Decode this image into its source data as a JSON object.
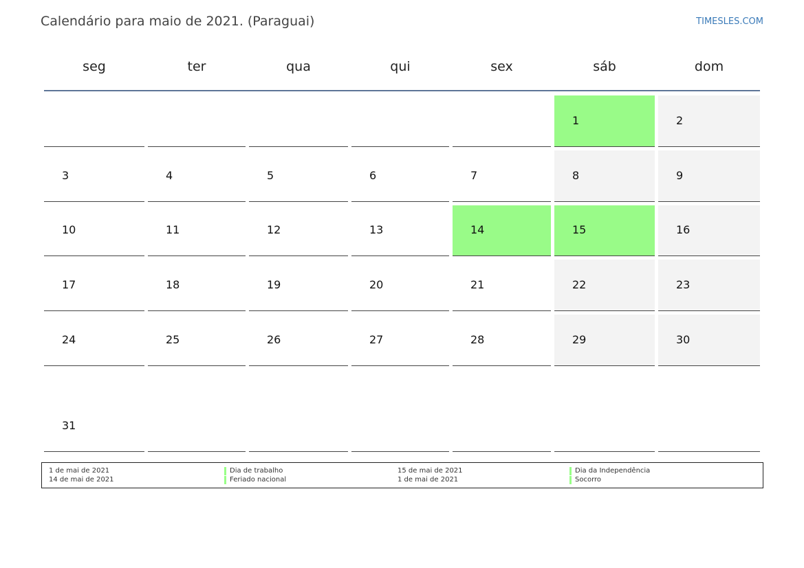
{
  "header": {
    "title": "Calendário para maio de 2021. (Paraguai)",
    "site": "TIMESLES.COM"
  },
  "weekdays": [
    "seg",
    "ter",
    "qua",
    "qui",
    "sex",
    "sáb",
    "dom"
  ],
  "weeks": [
    [
      null,
      null,
      null,
      null,
      null,
      {
        "day": "1",
        "holiday": true
      },
      {
        "day": "2",
        "holiday": false
      }
    ],
    [
      {
        "day": "3",
        "holiday": false
      },
      {
        "day": "4",
        "holiday": false
      },
      {
        "day": "5",
        "holiday": false
      },
      {
        "day": "6",
        "holiday": false
      },
      {
        "day": "7",
        "holiday": false
      },
      {
        "day": "8",
        "holiday": false
      },
      {
        "day": "9",
        "holiday": false
      }
    ],
    [
      {
        "day": "10",
        "holiday": false
      },
      {
        "day": "11",
        "holiday": false
      },
      {
        "day": "12",
        "holiday": false
      },
      {
        "day": "13",
        "holiday": false
      },
      {
        "day": "14",
        "holiday": true
      },
      {
        "day": "15",
        "holiday": true
      },
      {
        "day": "16",
        "holiday": false
      }
    ],
    [
      {
        "day": "17",
        "holiday": false
      },
      {
        "day": "18",
        "holiday": false
      },
      {
        "day": "19",
        "holiday": false
      },
      {
        "day": "20",
        "holiday": false
      },
      {
        "day": "21",
        "holiday": false
      },
      {
        "day": "22",
        "holiday": false
      },
      {
        "day": "23",
        "holiday": false
      }
    ],
    [
      {
        "day": "24",
        "holiday": false
      },
      {
        "day": "25",
        "holiday": false
      },
      {
        "day": "26",
        "holiday": false
      },
      {
        "day": "27",
        "holiday": false
      },
      {
        "day": "28",
        "holiday": false
      },
      {
        "day": "29",
        "holiday": false
      },
      {
        "day": "30",
        "holiday": false
      }
    ],
    [
      {
        "day": "31",
        "holiday": false
      },
      null,
      null,
      null,
      null,
      null,
      null
    ]
  ],
  "legend": [
    {
      "date": "1 de mai de 2021",
      "name": "Dia de trabalho"
    },
    {
      "date": "14 de mai de 2021",
      "name": "Feriado nacional"
    },
    {
      "date": "15 de mai de 2021",
      "name": "Dia da Independência"
    },
    {
      "date": "1 de mai de 2021",
      "name": "Socorro"
    }
  ]
}
